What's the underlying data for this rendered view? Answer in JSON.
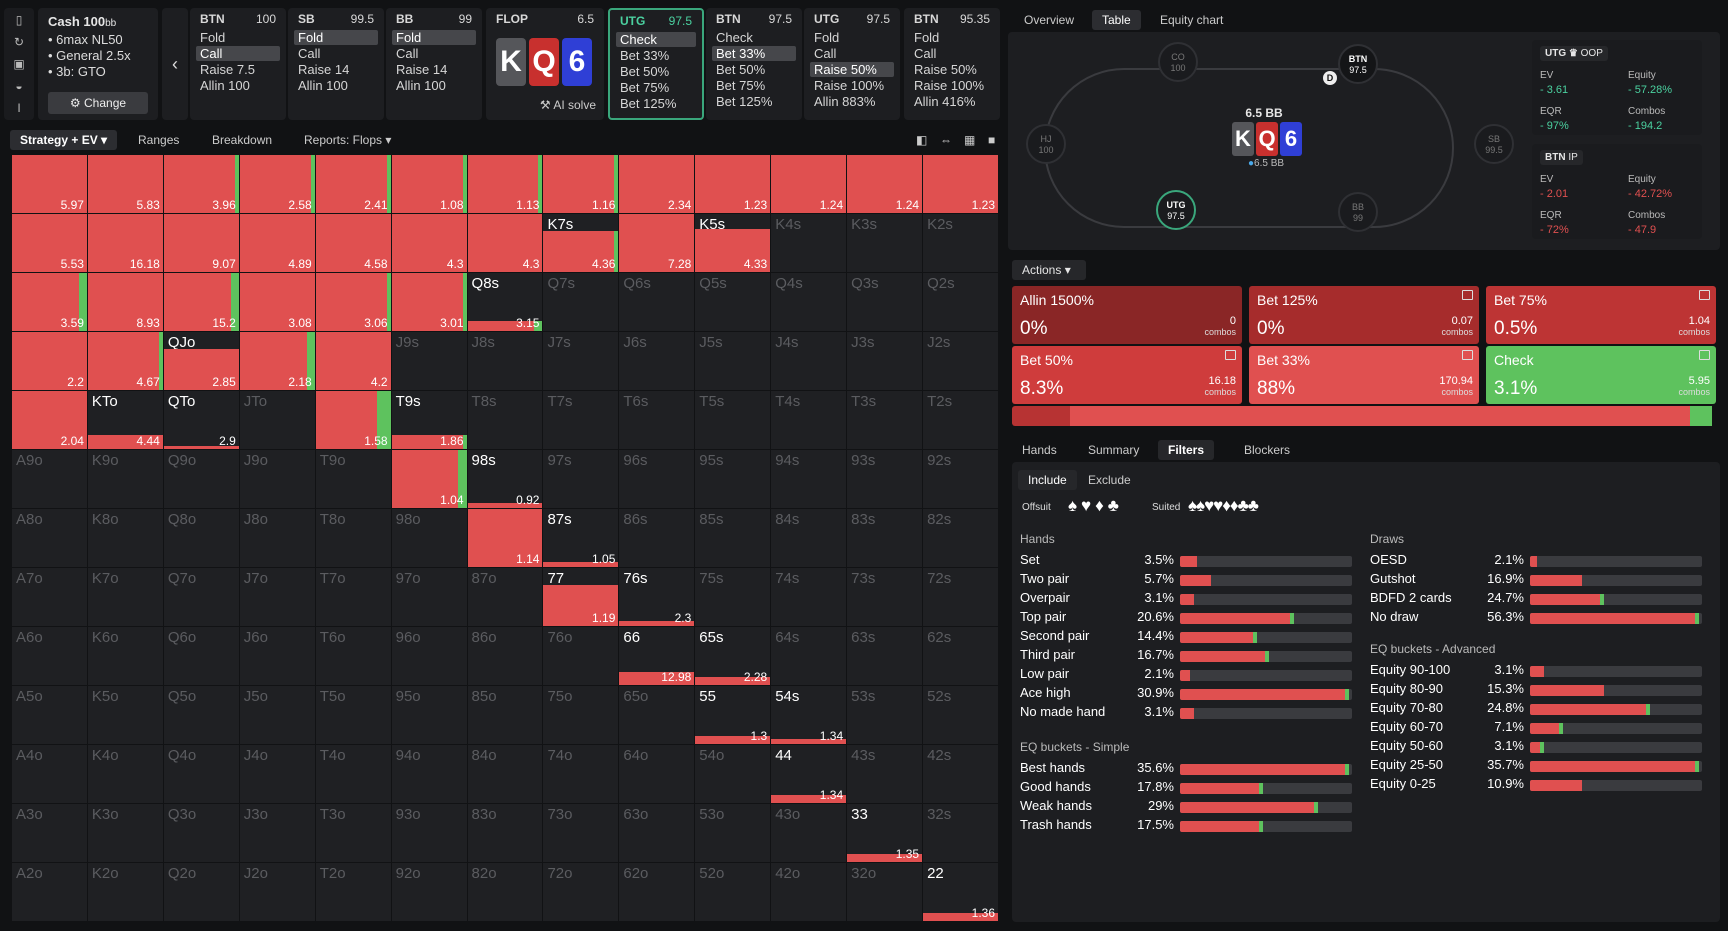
{
  "cash": {
    "title": "Cash 100",
    "unit": "bb",
    "lines": [
      "6max NL50",
      "General 2.5x",
      "3b: GTO"
    ],
    "change": "Change"
  },
  "cols": [
    {
      "pos": "BTN",
      "stack": "100",
      "items": [
        "Fold",
        "Call",
        "Raise 7.5",
        "Allin 100"
      ],
      "sel": 1
    },
    {
      "pos": "SB",
      "stack": "99.5",
      "items": [
        "Fold",
        "Call",
        "Raise 14",
        "Allin 100"
      ],
      "sel": 0
    },
    {
      "pos": "BB",
      "stack": "99",
      "items": [
        "Fold",
        "Call",
        "Raise 14",
        "Allin 100"
      ],
      "sel": 0
    },
    {
      "pos": "UTG",
      "stack": "97.5",
      "items": [
        "Check",
        "Bet 33%",
        "Bet 50%",
        "Bet 75%",
        "Bet 125%"
      ],
      "sel": 0,
      "active": true
    },
    {
      "pos": "BTN",
      "stack": "97.5",
      "items": [
        "Check",
        "Bet 33%",
        "Bet 50%",
        "Bet 75%",
        "Bet 125%"
      ],
      "sel": 1
    },
    {
      "pos": "UTG",
      "stack": "97.5",
      "items": [
        "Fold",
        "Call",
        "Raise 50%",
        "Raise 100%",
        "Allin 883%"
      ],
      "sel": 2
    },
    {
      "pos": "BTN",
      "stack": "95.35",
      "items": [
        "Fold",
        "Call",
        "Raise 50%",
        "Raise 100%",
        "Allin 416%"
      ],
      "sel": -1
    }
  ],
  "flop": {
    "label": "FLOP",
    "pot": "6.5",
    "cards": [
      "K",
      "Q",
      "6"
    ],
    "colors": [
      "#55565a",
      "#c8302e",
      "#2f3fd6"
    ],
    "ai": "AI solve"
  },
  "tabs": {
    "strategy": "Strategy + EV",
    "ranges": "Ranges",
    "breakdown": "Breakdown",
    "reports": "Reports: Flops"
  },
  "grid": {
    "hands": [
      [
        "AA",
        "AKs",
        "AQs",
        "AJs",
        "ATs",
        "A9s",
        "A8s",
        "A7s",
        "A6s",
        "A5s",
        "A4s",
        "A3s",
        "A2s"
      ],
      [
        "AKo",
        "KK",
        "KQs",
        "KJs",
        "KTs",
        "K9s",
        "K8s",
        "K7s",
        "K6s",
        "K5s",
        "K4s",
        "K3s",
        "K2s"
      ],
      [
        "AQo",
        "KQo",
        "QQ",
        "QJs",
        "QTs",
        "Q9s",
        "Q8s",
        "Q7s",
        "Q6s",
        "Q5s",
        "Q4s",
        "Q3s",
        "Q2s"
      ],
      [
        "AJo",
        "KJo",
        "QJo",
        "JJ",
        "JTs",
        "J9s",
        "J8s",
        "J7s",
        "J6s",
        "J5s",
        "J4s",
        "J3s",
        "J2s"
      ],
      [
        "ATo",
        "KTo",
        "QTo",
        "JTo",
        "TT",
        "T9s",
        "T8s",
        "T7s",
        "T6s",
        "T5s",
        "T4s",
        "T3s",
        "T2s"
      ],
      [
        "A9o",
        "K9o",
        "Q9o",
        "J9o",
        "T9o",
        "99",
        "98s",
        "97s",
        "96s",
        "95s",
        "94s",
        "93s",
        "92s"
      ],
      [
        "A8o",
        "K8o",
        "Q8o",
        "J8o",
        "T8o",
        "98o",
        "88",
        "87s",
        "86s",
        "85s",
        "84s",
        "83s",
        "82s"
      ],
      [
        "A7o",
        "K7o",
        "Q7o",
        "J7o",
        "T7o",
        "97o",
        "87o",
        "77",
        "76s",
        "75s",
        "74s",
        "73s",
        "72s"
      ],
      [
        "A6o",
        "K6o",
        "Q6o",
        "J6o",
        "T6o",
        "96o",
        "86o",
        "76o",
        "66",
        "65s",
        "64s",
        "63s",
        "62s"
      ],
      [
        "A5o",
        "K5o",
        "Q5o",
        "J5o",
        "T5o",
        "95o",
        "85o",
        "75o",
        "65o",
        "55",
        "54s",
        "53s",
        "52s"
      ],
      [
        "A4o",
        "K4o",
        "Q4o",
        "J4o",
        "T4o",
        "94o",
        "84o",
        "74o",
        "64o",
        "54o",
        "44",
        "43s",
        "42s"
      ],
      [
        "A3o",
        "K3o",
        "Q3o",
        "J3o",
        "T3o",
        "93o",
        "83o",
        "73o",
        "63o",
        "53o",
        "43o",
        "33",
        "32s"
      ],
      [
        "A2o",
        "K2o",
        "Q2o",
        "J2o",
        "T2o",
        "92o",
        "82o",
        "72o",
        "62o",
        "52o",
        "42o",
        "32o",
        "22"
      ]
    ],
    "cells": {
      "AA": [
        1,
        0,
        "5.97"
      ],
      "AKs": [
        1,
        0,
        "5.83"
      ],
      "AQs": [
        1,
        0.03,
        "3.96"
      ],
      "AJs": [
        1,
        0.03,
        "2.58"
      ],
      "ATs": [
        1,
        0.03,
        "2.41"
      ],
      "A9s": [
        1,
        0.03,
        "1.08"
      ],
      "A8s": [
        1,
        0.03,
        "1.13"
      ],
      "A7s": [
        1,
        0.03,
        "1.16"
      ],
      "A6s": [
        1,
        0,
        "2.34"
      ],
      "A5s": [
        1,
        0,
        "1.23"
      ],
      "A4s": [
        1,
        0,
        "1.24"
      ],
      "A3s": [
        1,
        0,
        "1.24"
      ],
      "A2s": [
        1,
        0,
        "1.23"
      ],
      "AKo": [
        1,
        0,
        "5.53"
      ],
      "KK": [
        1,
        0,
        "16.18"
      ],
      "KQs": [
        1,
        0,
        "9.07"
      ],
      "KJs": [
        1,
        0,
        "4.89"
      ],
      "KTs": [
        1,
        0,
        "4.58"
      ],
      "K9s": [
        1,
        0,
        "4.3"
      ],
      "K8s": [
        1,
        0,
        "4.3"
      ],
      "K7s": [
        0.7,
        0.03,
        "4.36"
      ],
      "K6s": [
        1,
        0,
        "7.28"
      ],
      "K5s": [
        0.75,
        0,
        "4.33"
      ],
      "AQo": [
        1,
        0.06,
        "3.59"
      ],
      "KQo": [
        1,
        0,
        "8.93"
      ],
      "QQ": [
        1,
        0.06,
        "15.2"
      ],
      "QJs": [
        1,
        0,
        "3.08"
      ],
      "QTs": [
        1,
        0.03,
        "3.06"
      ],
      "Q9s": [
        1,
        0.03,
        "3.01"
      ],
      "Q8s": [
        0.18,
        0.06,
        "3.15"
      ],
      "AJo": [
        1,
        0,
        "2.2"
      ],
      "KJo": [
        1,
        0.03,
        "4.67"
      ],
      "QJo": [
        0.7,
        0,
        "2.85"
      ],
      "JJ": [
        1,
        0.06,
        "2.18"
      ],
      "JTs": [
        1,
        0,
        "4.2"
      ],
      "ATo": [
        1,
        0,
        "2.04"
      ],
      "KTo": [
        0.25,
        0,
        "4.44"
      ],
      "QTo": [
        0.05,
        0,
        "2.9"
      ],
      "TT": [
        1,
        0.1,
        "1.58"
      ],
      "T9s": [
        0.25,
        0.03,
        "1.86"
      ],
      "99": [
        1,
        0.06,
        "1.04"
      ],
      "98s": [
        0.08,
        0,
        "0.92"
      ],
      "88": [
        1,
        0,
        "1.14"
      ],
      "87s": [
        0.08,
        0,
        "1.05"
      ],
      "77": [
        0.7,
        0,
        "1.19"
      ],
      "76s": [
        0.08,
        0,
        "2.3"
      ],
      "66": [
        0.22,
        0,
        "12.98"
      ],
      "65s": [
        0.13,
        0,
        "2.28"
      ],
      "55": [
        0.13,
        0,
        "1.3"
      ],
      "54s": [
        0.08,
        0,
        "1.34"
      ],
      "44": [
        0.13,
        0,
        "1.34"
      ],
      "33": [
        0.13,
        0,
        "1.35"
      ],
      "22": [
        0.13,
        0,
        "1.36"
      ]
    }
  },
  "right_tabs": [
    "Overview",
    "Table",
    "Equity chart"
  ],
  "table": {
    "pot_label": "6.5 BB",
    "pot_chip": "6.5 BB",
    "board": [
      "K",
      "Q",
      "6"
    ],
    "seats": [
      {
        "n": "CO",
        "s": "100"
      },
      {
        "n": "BTN",
        "s": "97.5"
      },
      {
        "n": "HJ",
        "s": "100"
      },
      {
        "n": "SB",
        "s": "99.5"
      },
      {
        "n": "UTG",
        "s": "97.5"
      },
      {
        "n": "BB",
        "s": "99"
      }
    ],
    "dealer": "D"
  },
  "stats": [
    {
      "name": "UTG",
      "tag": "OOP",
      "ev": "3.61",
      "equity": "57.28%",
      "eqr": "97%",
      "combos": "194.2",
      "sign": "pos"
    },
    {
      "name": "BTN",
      "tag": "IP",
      "ev": "2.01",
      "equity": "42.72%",
      "eqr": "72%",
      "combos": "47.9",
      "sign": "neg"
    }
  ],
  "stat_labels": {
    "ev": "EV",
    "equity": "Equity",
    "eqr": "EQR",
    "combos": "Combos"
  },
  "actions_label": "Actions",
  "actions": [
    {
      "name": "Allin 1500%",
      "pct": "0%",
      "combos": "0",
      "color": "#8a2626"
    },
    {
      "name": "Bet 125%",
      "pct": "0%",
      "combos": "0.07",
      "color": "#a62c2c"
    },
    {
      "name": "Bet 75%",
      "pct": "0.5%",
      "combos": "1.04",
      "color": "#bd3434"
    },
    {
      "name": "Bet 50%",
      "pct": "8.3%",
      "combos": "16.18",
      "color": "#cf3c3c"
    },
    {
      "name": "Bet 33%",
      "pct": "88%",
      "combos": "170.94",
      "color": "#e05050"
    },
    {
      "name": "Check",
      "pct": "3.1%",
      "combos": "5.95",
      "color": "#5ec25e"
    }
  ],
  "combos_word": "combos",
  "freq": [
    {
      "w": 0.083,
      "c": "#b73333"
    },
    {
      "w": 0.88,
      "c": "#e05050"
    },
    {
      "w": 0.031,
      "c": "#5ec25e"
    }
  ],
  "filter_tabs": [
    "Hands",
    "Summary",
    "Filters",
    "Blockers"
  ],
  "include": "Include",
  "exclude": "Exclude",
  "offsuit": "Offsuit",
  "suited": "Suited",
  "hands_title": "Hands",
  "hands_rows": [
    {
      "l": "Set",
      "v": "3.5%",
      "r": 0.1,
      "g": 0
    },
    {
      "l": "Two pair",
      "v": "5.7%",
      "r": 0.18,
      "g": 0
    },
    {
      "l": "Overpair",
      "v": "3.1%",
      "r": 0.08,
      "g": 0
    },
    {
      "l": "Top pair",
      "v": "20.6%",
      "r": 0.66,
      "g": 0.66
    },
    {
      "l": "Second pair",
      "v": "14.4%",
      "r": 0.45,
      "g": 0.45
    },
    {
      "l": "Third pair",
      "v": "16.7%",
      "r": 0.52,
      "g": 0.52
    },
    {
      "l": "Low pair",
      "v": "2.1%",
      "r": 0.06,
      "g": 0
    },
    {
      "l": "Ace high",
      "v": "30.9%",
      "r": 0.98,
      "g": 0.98
    },
    {
      "l": "No made hand",
      "v": "3.1%",
      "r": 0.08,
      "g": 0
    }
  ],
  "simple_title": "EQ buckets - Simple",
  "simple_rows": [
    {
      "l": "Best hands",
      "v": "35.6%",
      "r": 0.98,
      "g": 0.98
    },
    {
      "l": "Good hands",
      "v": "17.8%",
      "r": 0.48,
      "g": 0.48
    },
    {
      "l": "Weak hands",
      "v": "29%",
      "r": 0.8,
      "g": 0.8
    },
    {
      "l": "Trash hands",
      "v": "17.5%",
      "r": 0.48,
      "g": 0.48
    }
  ],
  "draws_title": "Draws",
  "draws_rows": [
    {
      "l": "OESD",
      "v": "2.1%",
      "r": 0.04,
      "g": 0
    },
    {
      "l": "Gutshot",
      "v": "16.9%",
      "r": 0.3,
      "g": 0
    },
    {
      "l": "BDFD 2 cards",
      "v": "24.7%",
      "r": 0.43,
      "g": 0.43
    },
    {
      "l": "No draw",
      "v": "56.3%",
      "r": 0.98,
      "g": 0.98
    }
  ],
  "adv_title": "EQ buckets - Advanced",
  "adv_rows": [
    {
      "l": "Equity 90-100",
      "v": "3.1%",
      "r": 0.08,
      "g": 0
    },
    {
      "l": "Equity 80-90",
      "v": "15.3%",
      "r": 0.43,
      "g": 0
    },
    {
      "l": "Equity 70-80",
      "v": "24.8%",
      "r": 0.7,
      "g": 0.7
    },
    {
      "l": "Equity 60-70",
      "v": "7.1%",
      "r": 0.19,
      "g": 0.19
    },
    {
      "l": "Equity 50-60",
      "v": "3.1%",
      "r": 0.08,
      "g": 0.08
    },
    {
      "l": "Equity 25-50",
      "v": "35.7%",
      "r": 0.98,
      "g": 0.98
    },
    {
      "l": "Equity 0-25",
      "v": "10.9%",
      "r": 0.3,
      "g": 0
    }
  ]
}
